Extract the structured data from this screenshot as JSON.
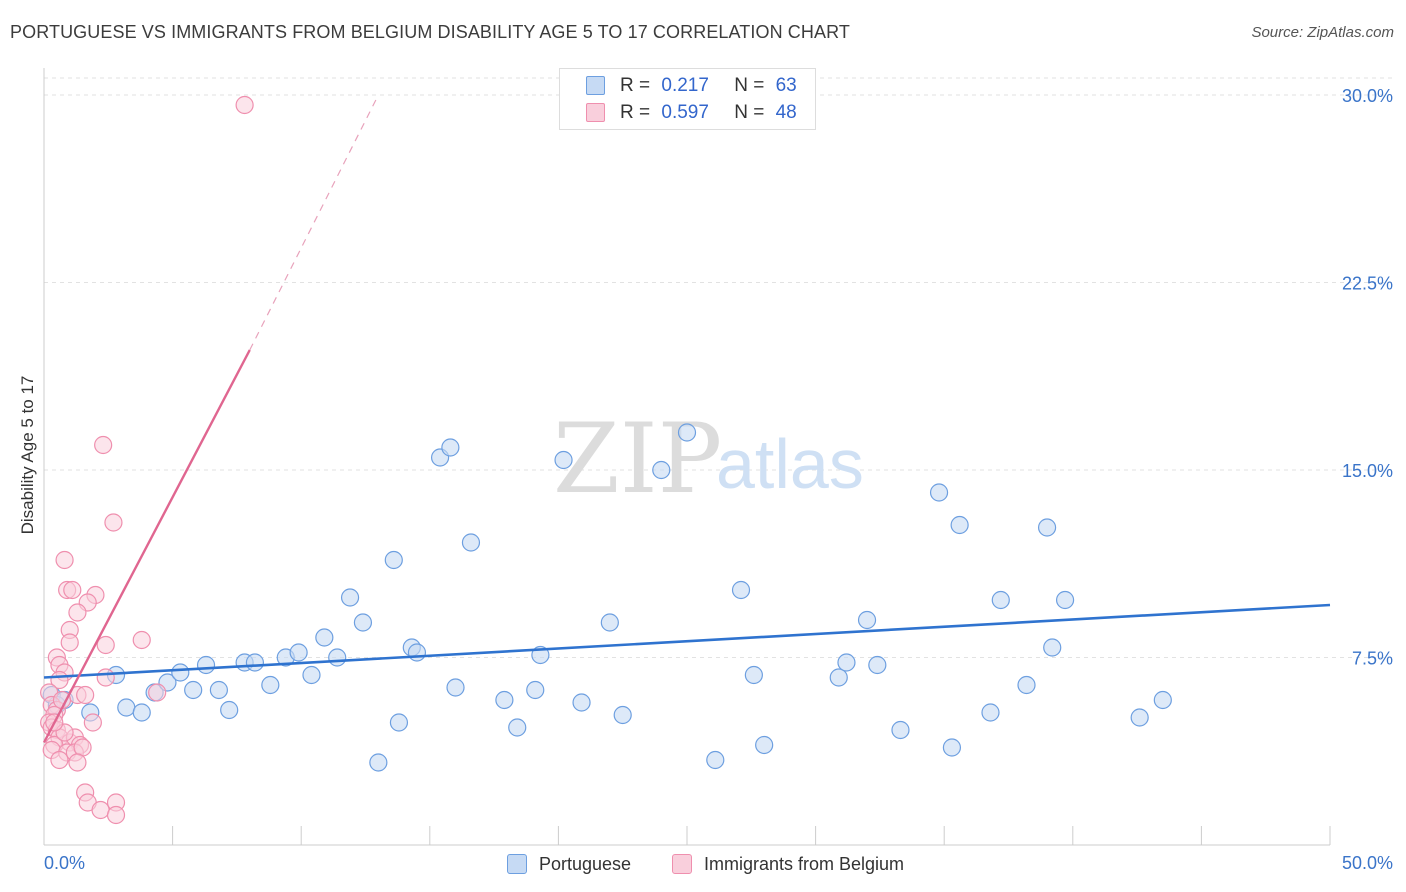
{
  "title": "PORTUGUESE VS IMMIGRANTS FROM BELGIUM DISABILITY AGE 5 TO 17 CORRELATION CHART",
  "source": "Source: ZipAtlas.com",
  "watermark": {
    "part1": "ZIP",
    "part2": "atlas"
  },
  "legend_top": {
    "rows": [
      {
        "r_label": "R =",
        "r_value": "0.217",
        "n_label": "N =",
        "n_value": "63",
        "color": "#a9c8ee"
      },
      {
        "r_label": "R =",
        "r_value": "0.597",
        "n_label": "N =",
        "n_value": "48",
        "color": "#f6b3c8"
      }
    ]
  },
  "legend_bottom": {
    "items": [
      {
        "label": "Portuguese",
        "color": "#a9c8ee"
      },
      {
        "label": "Immigrants from Belgium",
        "color": "#f6b3c8"
      }
    ]
  },
  "chart_data": {
    "type": "scatter",
    "title": "PORTUGUESE VS IMMIGRANTS FROM BELGIUM DISABILITY AGE 5 TO 17 CORRELATION CHART",
    "xlabel": "",
    "ylabel": "Disability Age 5 to 17",
    "xlim": [
      0,
      50
    ],
    "ylim": [
      0,
      30
    ],
    "x_tick_labels": [
      "0.0%",
      "50.0%"
    ],
    "y_ticks": [
      7.5,
      15.0,
      22.5,
      30.0
    ],
    "y_tick_labels": [
      "7.5%",
      "15.0%",
      "22.5%",
      "30.0%"
    ],
    "grid": true,
    "legend_placement": "bottom",
    "series": [
      {
        "name": "Portuguese",
        "color": "#6d9fe0",
        "fill": "#c6daf4",
        "trend": {
          "x": [
            0,
            50
          ],
          "y": [
            6.7,
            9.6
          ]
        },
        "points": [
          [
            0.3,
            6.0
          ],
          [
            0.5,
            5.6
          ],
          [
            0.8,
            5.8
          ],
          [
            1.8,
            5.3
          ],
          [
            2.8,
            6.8
          ],
          [
            3.2,
            5.5
          ],
          [
            3.8,
            5.3
          ],
          [
            4.3,
            6.1
          ],
          [
            4.8,
            6.5
          ],
          [
            5.3,
            6.9
          ],
          [
            5.8,
            6.2
          ],
          [
            6.3,
            7.2
          ],
          [
            6.8,
            6.2
          ],
          [
            7.2,
            5.4
          ],
          [
            7.8,
            7.3
          ],
          [
            8.2,
            7.3
          ],
          [
            8.8,
            6.4
          ],
          [
            9.4,
            7.5
          ],
          [
            9.9,
            7.7
          ],
          [
            10.4,
            6.8
          ],
          [
            10.9,
            8.3
          ],
          [
            11.4,
            7.5
          ],
          [
            11.9,
            9.9
          ],
          [
            12.4,
            8.9
          ],
          [
            13.0,
            3.3
          ],
          [
            13.6,
            11.4
          ],
          [
            13.8,
            4.9
          ],
          [
            14.3,
            7.9
          ],
          [
            14.5,
            7.7
          ],
          [
            15.4,
            15.5
          ],
          [
            15.8,
            15.9
          ],
          [
            16.0,
            6.3
          ],
          [
            16.6,
            12.1
          ],
          [
            17.9,
            5.8
          ],
          [
            18.4,
            4.7
          ],
          [
            19.1,
            6.2
          ],
          [
            19.3,
            7.6
          ],
          [
            20.2,
            15.4
          ],
          [
            20.9,
            5.7
          ],
          [
            22.0,
            8.9
          ],
          [
            22.5,
            5.2
          ],
          [
            24.0,
            15.0
          ],
          [
            25.0,
            16.5
          ],
          [
            26.1,
            3.4
          ],
          [
            27.1,
            10.2
          ],
          [
            27.6,
            6.8
          ],
          [
            28.0,
            4.0
          ],
          [
            30.9,
            6.7
          ],
          [
            31.2,
            7.3
          ],
          [
            32.0,
            9.0
          ],
          [
            32.4,
            7.2
          ],
          [
            33.3,
            4.6
          ],
          [
            34.8,
            14.1
          ],
          [
            35.3,
            3.9
          ],
          [
            35.6,
            12.8
          ],
          [
            36.8,
            5.3
          ],
          [
            37.2,
            9.8
          ],
          [
            38.2,
            6.4
          ],
          [
            39.0,
            12.7
          ],
          [
            39.2,
            7.9
          ],
          [
            39.7,
            9.8
          ],
          [
            42.6,
            5.1
          ],
          [
            43.5,
            5.8
          ]
        ]
      },
      {
        "name": "Immigrants from Belgium",
        "color": "#ef8fae",
        "fill": "#f9cfdc",
        "trend": {
          "x": [
            0,
            8
          ],
          "y": [
            4.1,
            19.8
          ],
          "dashed_extension": {
            "x": [
              8,
              13
            ],
            "y": [
              19.8,
              30.0
            ]
          }
        },
        "points": [
          [
            7.8,
            29.6
          ],
          [
            2.3,
            16.0
          ],
          [
            2.7,
            12.9
          ],
          [
            0.8,
            11.4
          ],
          [
            0.9,
            10.2
          ],
          [
            1.1,
            10.2
          ],
          [
            2.0,
            10.0
          ],
          [
            1.7,
            9.7
          ],
          [
            1.3,
            9.3
          ],
          [
            1.0,
            8.6
          ],
          [
            1.0,
            8.1
          ],
          [
            2.4,
            8.0
          ],
          [
            3.8,
            8.2
          ],
          [
            0.5,
            7.5
          ],
          [
            0.6,
            7.2
          ],
          [
            0.8,
            6.9
          ],
          [
            0.6,
            6.6
          ],
          [
            2.4,
            6.7
          ],
          [
            0.2,
            6.1
          ],
          [
            1.3,
            6.0
          ],
          [
            1.6,
            6.0
          ],
          [
            4.4,
            6.1
          ],
          [
            0.3,
            5.6
          ],
          [
            0.5,
            5.4
          ],
          [
            0.4,
            5.2
          ],
          [
            0.2,
            4.9
          ],
          [
            0.3,
            4.7
          ],
          [
            0.5,
            4.6
          ],
          [
            1.9,
            4.9
          ],
          [
            0.6,
            4.3
          ],
          [
            1.0,
            4.1
          ],
          [
            1.2,
            4.3
          ],
          [
            1.4,
            4.0
          ],
          [
            0.4,
            4.0
          ],
          [
            0.8,
            4.5
          ],
          [
            0.3,
            3.8
          ],
          [
            0.9,
            3.7
          ],
          [
            1.2,
            3.7
          ],
          [
            1.5,
            3.9
          ],
          [
            0.6,
            3.4
          ],
          [
            1.3,
            3.3
          ],
          [
            0.4,
            4.9
          ],
          [
            0.7,
            5.8
          ],
          [
            1.6,
            2.1
          ],
          [
            1.7,
            1.7
          ],
          [
            2.2,
            1.4
          ],
          [
            2.8,
            1.7
          ],
          [
            2.8,
            1.2
          ]
        ]
      }
    ]
  }
}
